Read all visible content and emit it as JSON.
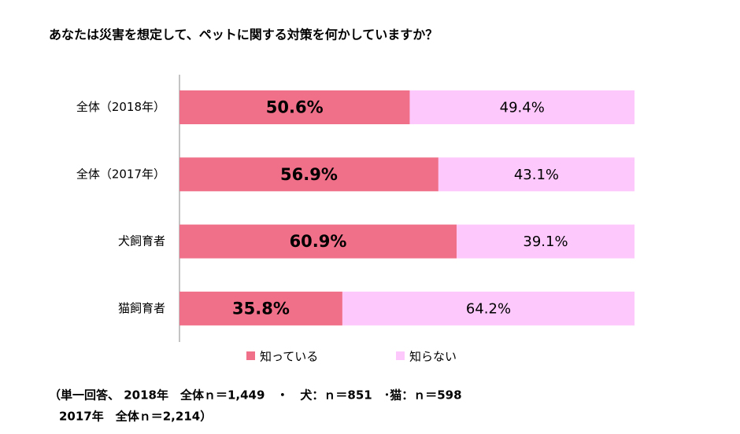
{
  "chart_data": {
    "type": "stacked-barh",
    "title": "あなたは災害を想定して、ペットに関する対策を何かしていますか？",
    "categories": [
      "全体（2018年）",
      "全体（2017年）",
      "犬飼育者",
      "猫飼育者"
    ],
    "series": [
      {
        "name": "知っている",
        "color": "#f07089",
        "values": [
          50.6,
          56.9,
          60.9,
          35.8
        ],
        "value_labels": [
          "50.6%",
          "56.9%",
          "60.9%",
          "35.8%"
        ]
      },
      {
        "name": "知らない",
        "color": "#fdc9fc",
        "values": [
          49.4,
          43.1,
          39.1,
          64.2
        ],
        "value_labels": [
          "49.4%",
          "43.1%",
          "39.1%",
          "64.2%"
        ]
      }
    ],
    "notes": [
      "（単一回答、 2018年　全体ｎ＝1,449　・　犬：ｎ＝851　･猫：ｎ＝598",
      "2017年　全体ｎ＝2,214）"
    ]
  }
}
